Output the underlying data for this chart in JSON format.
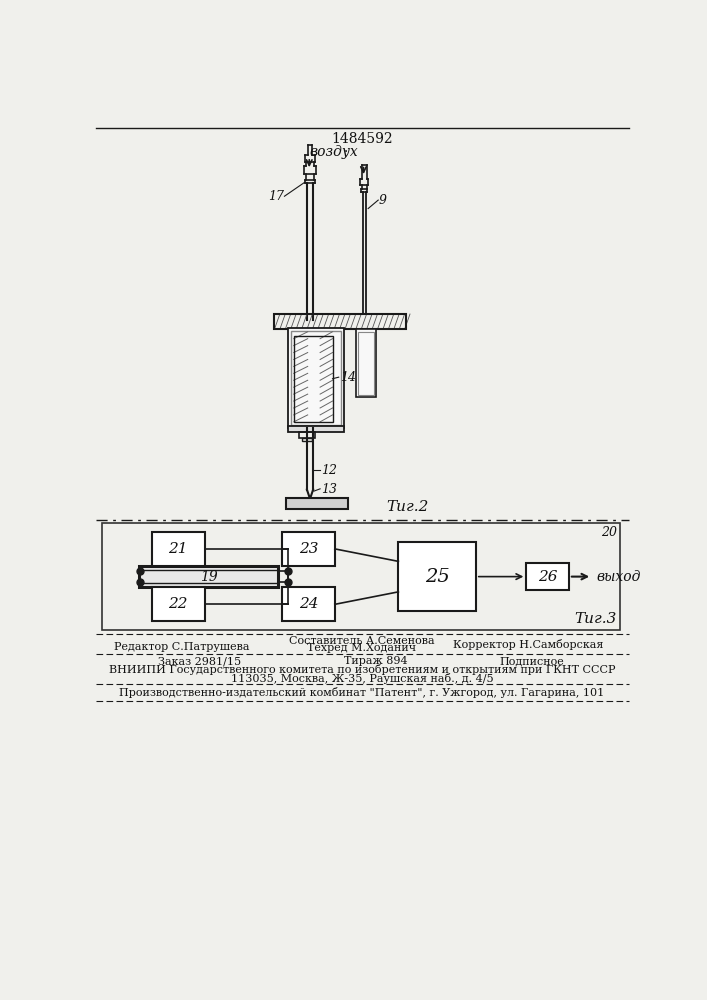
{
  "patent_number": "1484592",
  "fig2_label": "Τиг.2",
  "fig3_label": "Τиг.3",
  "vozduh_label": "воздух",
  "vykhod_label": "выход",
  "label_17": "17",
  "label_9": "9",
  "label_12": "12",
  "label_13": "13",
  "label_14": "14",
  "label_19": "19",
  "label_20": "20",
  "label_21": "21",
  "label_22": "22",
  "label_23": "23",
  "label_24": "24",
  "label_25": "25",
  "label_26": "26",
  "footer_editor": "Редактор С.Патрушева",
  "footer_sostavitel": "Составитель А.Семенова",
  "footer_tehred": "Техред М.Ходанич",
  "footer_korrektor": "Корректор Н.Самборская",
  "footer_zakaz": "Заказ 2981/15",
  "footer_tirazh": "Тираж 894",
  "footer_podpisnoe": "Подписное",
  "footer_vniip1": "ВНИИПИ Государственного комитета по изобретениям и открытиям при ГКНТ СССР",
  "footer_vniip2": "113035, Москва, Ж-35, Раушская наб., д. 4/5",
  "footer_kombinat": "Производственно-издательский комбинат \"Патент\", г. Ужгород, ул. Гагарина, 101",
  "bg_color": "#f0f0ec",
  "line_color": "#1a1a1a",
  "text_color": "#111111"
}
